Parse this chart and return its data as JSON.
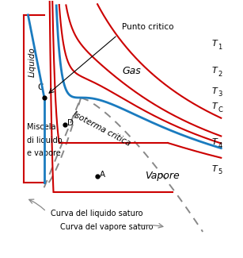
{
  "bg_color": "#ffffff",
  "red_color": "#cc0000",
  "blue_color": "#1a7bbf",
  "dashed_color": "#888888",
  "label_Liquido": "Liquido",
  "label_Gas": "Gas",
  "label_Vapore": "Vapore",
  "label_Miscela_1": "Miscela",
  "label_Miscela_2": "di liquido",
  "label_Miscela_3": "e vapore",
  "label_Isoterma": "Isoterma critica",
  "label_Punto": "Punto critico",
  "label_Curva_liquido": "Curva del liquido saturo",
  "label_Curva_vapore": "Curva del vapore saturo",
  "T1": "T",
  "T1_sub": "1",
  "T2": "T",
  "T2_sub": "2",
  "T3": "T",
  "T3_sub": "3",
  "TC": "T",
  "TC_sub": "C",
  "T4": "T",
  "T4_sub": "4",
  "T5": "T",
  "T5_sub": "5",
  "label_C": "C",
  "label_D": "D",
  "label_A": "A"
}
